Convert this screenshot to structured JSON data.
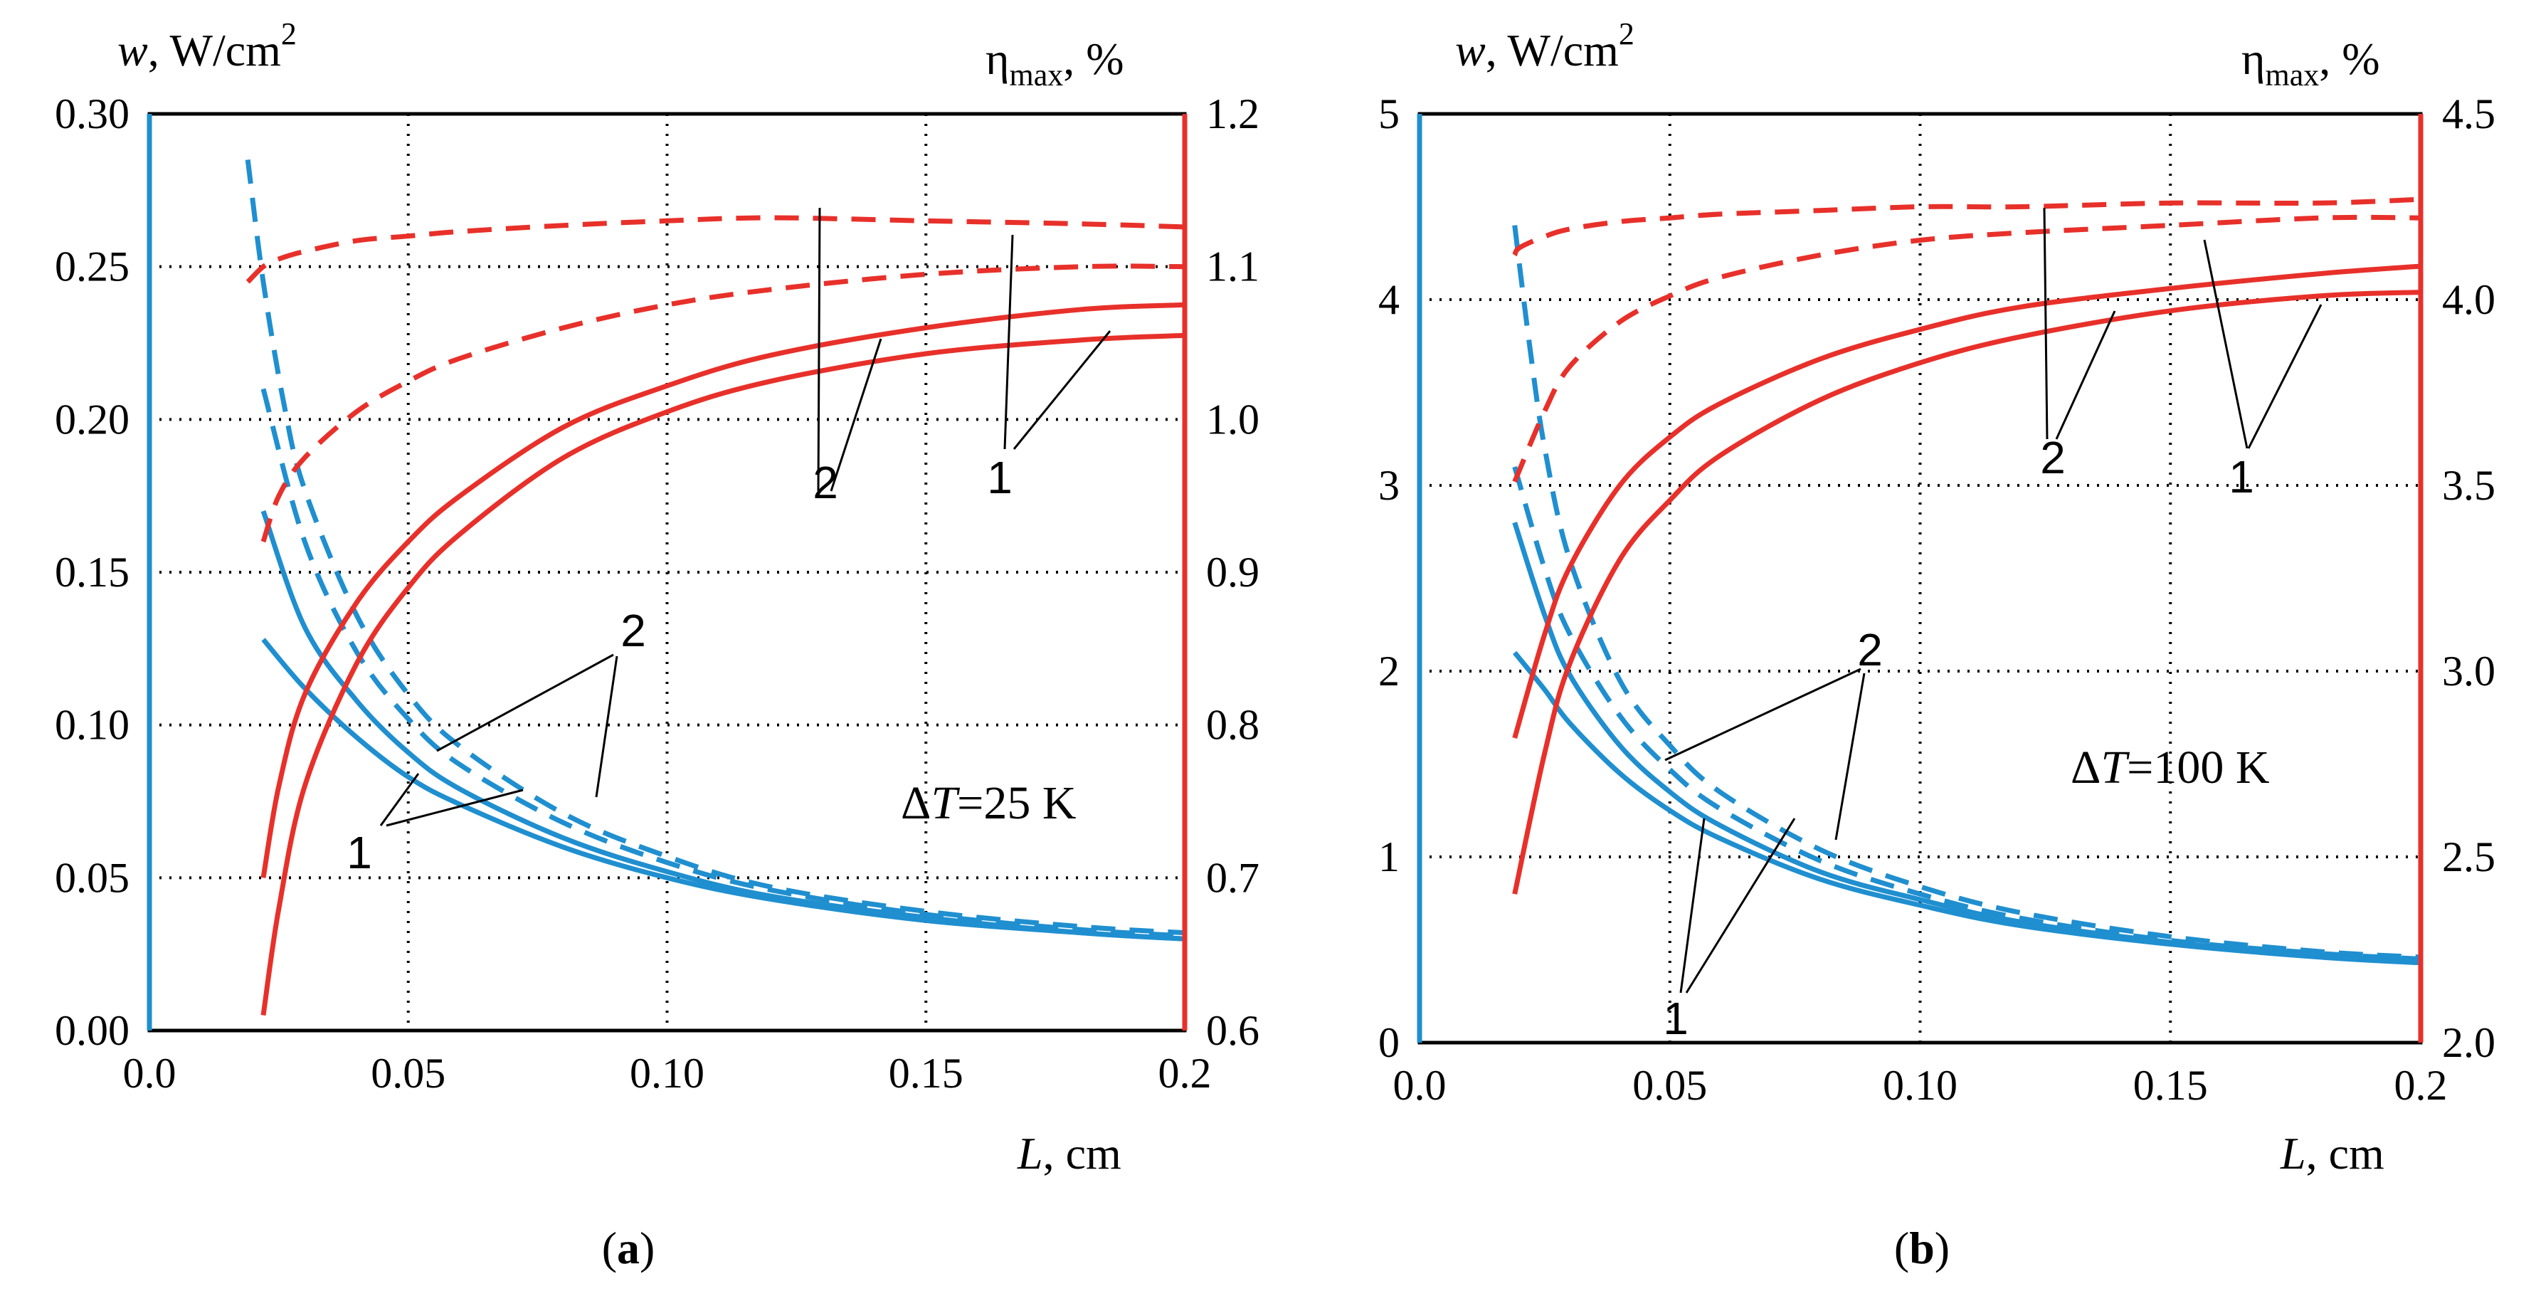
{
  "colors": {
    "w_axis": "#1f8fd0",
    "eta_axis": "#e8302a",
    "frame": "#000000",
    "grid": "#000000"
  },
  "chart_data": [
    {
      "type": "line",
      "panel_label": "(a)",
      "title": "",
      "xlabel": "L, cm",
      "ylabel_left": "w, W/cm²",
      "ylabel_right": "ηmax, %",
      "xlim": [
        0.0,
        0.2
      ],
      "ylim_left": [
        0.0,
        0.3
      ],
      "ylim_right": [
        0.6,
        1.2
      ],
      "grid": true,
      "xticks": [
        "0.0",
        "0.05",
        "0.10",
        "0.15",
        "0.2"
      ],
      "yticks_left": [
        "0.00",
        "0.05",
        "0.10",
        "0.15",
        "0.20",
        "0.25",
        "0.30"
      ],
      "yticks_right": [
        "0.6",
        "0.7",
        "0.8",
        "0.9",
        "1.0",
        "1.1",
        "1.2"
      ],
      "annotation": "ΔT=25 K",
      "series": [
        {
          "name": "w curve 1 (solid)",
          "axis": "left",
          "style": "solid",
          "x": [
            0.022,
            0.03,
            0.04,
            0.05,
            0.06,
            0.08,
            0.1,
            0.12,
            0.15,
            0.18,
            0.2
          ],
          "y": [
            0.128,
            0.112,
            0.096,
            0.083,
            0.074,
            0.06,
            0.05,
            0.043,
            0.036,
            0.032,
            0.03
          ]
        },
        {
          "name": "w curve 2 (solid)",
          "axis": "left",
          "style": "solid",
          "x": [
            0.022,
            0.03,
            0.04,
            0.05,
            0.06,
            0.08,
            0.1,
            0.12,
            0.15,
            0.18,
            0.2
          ],
          "y": [
            0.17,
            0.132,
            0.108,
            0.091,
            0.079,
            0.063,
            0.052,
            0.044,
            0.037,
            0.032,
            0.03
          ]
        },
        {
          "name": "w curve 1 (dashed)",
          "axis": "left",
          "style": "dashed",
          "x": [
            0.022,
            0.03,
            0.04,
            0.05,
            0.06,
            0.08,
            0.1,
            0.12,
            0.15,
            0.18,
            0.2
          ],
          "y": [
            0.21,
            0.16,
            0.124,
            0.102,
            0.087,
            0.068,
            0.055,
            0.046,
            0.038,
            0.033,
            0.031
          ]
        },
        {
          "name": "w curve 2 (dashed)",
          "axis": "left",
          "style": "dashed",
          "x": [
            0.019,
            0.022,
            0.026,
            0.03,
            0.04,
            0.05,
            0.06,
            0.08,
            0.1,
            0.12,
            0.15,
            0.18,
            0.2
          ],
          "y": [
            0.285,
            0.245,
            0.205,
            0.177,
            0.136,
            0.11,
            0.093,
            0.071,
            0.057,
            0.047,
            0.039,
            0.034,
            0.032
          ]
        },
        {
          "name": "η curve 1 (solid)",
          "axis": "right",
          "style": "solid",
          "x": [
            0.022,
            0.025,
            0.03,
            0.04,
            0.05,
            0.06,
            0.08,
            0.1,
            0.12,
            0.15,
            0.18,
            0.2
          ],
          "y": [
            0.61,
            0.68,
            0.76,
            0.84,
            0.89,
            0.925,
            0.975,
            1.005,
            1.025,
            1.043,
            1.052,
            1.055
          ]
        },
        {
          "name": "η curve 2 (solid)",
          "axis": "right",
          "style": "solid",
          "x": [
            0.022,
            0.025,
            0.03,
            0.04,
            0.05,
            0.06,
            0.08,
            0.1,
            0.12,
            0.15,
            0.18,
            0.2
          ],
          "y": [
            0.7,
            0.76,
            0.82,
            0.88,
            0.92,
            0.95,
            0.995,
            1.022,
            1.042,
            1.06,
            1.072,
            1.075
          ]
        },
        {
          "name": "η curve 1 (dashed)",
          "axis": "right",
          "style": "dashed",
          "x": [
            0.022,
            0.025,
            0.03,
            0.04,
            0.05,
            0.06,
            0.08,
            0.1,
            0.12,
            0.15,
            0.18,
            0.2
          ],
          "y": [
            0.92,
            0.95,
            0.975,
            1.005,
            1.025,
            1.04,
            1.06,
            1.075,
            1.085,
            1.095,
            1.1,
            1.1
          ]
        },
        {
          "name": "η curve 2 (dashed)",
          "axis": "right",
          "style": "dashed",
          "x": [
            0.019,
            0.022,
            0.025,
            0.03,
            0.04,
            0.05,
            0.06,
            0.08,
            0.1,
            0.12,
            0.15,
            0.18,
            0.2
          ],
          "y": [
            1.09,
            1.1,
            1.105,
            1.11,
            1.117,
            1.12,
            1.123,
            1.127,
            1.13,
            1.132,
            1.13,
            1.128,
            1.126
          ]
        }
      ],
      "curve_labels": [
        {
          "text": "2",
          "target": "η pair 2"
        },
        {
          "text": "1",
          "target": "η pair 1"
        },
        {
          "text": "2",
          "target": "w pair 2"
        },
        {
          "text": "1",
          "target": "w pair 1"
        }
      ]
    },
    {
      "type": "line",
      "panel_label": "(b)",
      "title": "",
      "xlabel": "L, cm",
      "ylabel_left": "w, W/cm²",
      "ylabel_right": "ηmax, %",
      "xlim": [
        0.0,
        0.2
      ],
      "ylim_left": [
        0,
        5
      ],
      "ylim_right": [
        2.0,
        4.5
      ],
      "grid": true,
      "xticks": [
        "0.0",
        "0.05",
        "0.10",
        "0.15",
        "0.2"
      ],
      "yticks_left": [
        "0",
        "1",
        "2",
        "3",
        "4",
        "5"
      ],
      "yticks_right": [
        "2.0",
        "2.5",
        "3.0",
        "3.5",
        "4.0",
        "4.5"
      ],
      "annotation": "ΔT=100 K",
      "series": [
        {
          "name": "w curve 1 (solid)",
          "axis": "left",
          "style": "solid",
          "x": [
            0.019,
            0.025,
            0.03,
            0.04,
            0.05,
            0.06,
            0.08,
            0.1,
            0.12,
            0.15,
            0.18,
            0.2
          ],
          "y": [
            2.1,
            1.9,
            1.72,
            1.45,
            1.25,
            1.1,
            0.88,
            0.74,
            0.63,
            0.53,
            0.46,
            0.43
          ]
        },
        {
          "name": "w curve 2 (solid)",
          "axis": "left",
          "style": "solid",
          "x": [
            0.019,
            0.025,
            0.03,
            0.04,
            0.05,
            0.06,
            0.08,
            0.1,
            0.12,
            0.15,
            0.18,
            0.2
          ],
          "y": [
            2.8,
            2.3,
            1.98,
            1.6,
            1.35,
            1.17,
            0.92,
            0.77,
            0.65,
            0.54,
            0.47,
            0.44
          ]
        },
        {
          "name": "w curve 1 (dashed)",
          "axis": "left",
          "style": "dashed",
          "x": [
            0.019,
            0.025,
            0.03,
            0.04,
            0.05,
            0.06,
            0.08,
            0.1,
            0.12,
            0.15,
            0.18,
            0.2
          ],
          "y": [
            3.1,
            2.55,
            2.2,
            1.76,
            1.47,
            1.26,
            0.98,
            0.8,
            0.67,
            0.55,
            0.48,
            0.45
          ]
        },
        {
          "name": "w curve 2 (dashed)",
          "axis": "left",
          "style": "dashed",
          "x": [
            0.019,
            0.022,
            0.025,
            0.03,
            0.04,
            0.05,
            0.06,
            0.08,
            0.1,
            0.12,
            0.15,
            0.18,
            0.2
          ],
          "y": [
            4.4,
            3.75,
            3.2,
            2.6,
            1.95,
            1.6,
            1.35,
            1.04,
            0.84,
            0.7,
            0.57,
            0.49,
            0.46
          ]
        },
        {
          "name": "η curve 1 (solid)",
          "axis": "right",
          "style": "solid",
          "x": [
            0.019,
            0.025,
            0.03,
            0.04,
            0.05,
            0.06,
            0.08,
            0.1,
            0.12,
            0.15,
            0.18,
            0.2
          ],
          "y": [
            2.4,
            2.78,
            3.02,
            3.3,
            3.46,
            3.58,
            3.73,
            3.83,
            3.9,
            3.97,
            4.01,
            4.02
          ]
        },
        {
          "name": "η curve 2 (solid)",
          "axis": "right",
          "style": "solid",
          "x": [
            0.019,
            0.025,
            0.03,
            0.04,
            0.05,
            0.06,
            0.08,
            0.1,
            0.12,
            0.15,
            0.18,
            0.2
          ],
          "y": [
            2.82,
            3.1,
            3.28,
            3.5,
            3.63,
            3.72,
            3.84,
            3.92,
            3.98,
            4.03,
            4.07,
            4.09
          ]
        },
        {
          "name": "η curve 1 (dashed)",
          "axis": "right",
          "style": "dashed",
          "x": [
            0.019,
            0.025,
            0.03,
            0.04,
            0.05,
            0.06,
            0.08,
            0.1,
            0.12,
            0.15,
            0.18,
            0.2
          ],
          "y": [
            3.51,
            3.7,
            3.82,
            3.94,
            4.01,
            4.06,
            4.12,
            4.16,
            4.18,
            4.2,
            4.22,
            4.22
          ]
        },
        {
          "name": "η curve 2 (dashed)",
          "axis": "right",
          "style": "dashed",
          "x": [
            0.019,
            0.02,
            0.025,
            0.03,
            0.04,
            0.05,
            0.06,
            0.08,
            0.1,
            0.12,
            0.15,
            0.18,
            0.2
          ],
          "y": [
            4.12,
            4.14,
            4.17,
            4.19,
            4.21,
            4.22,
            4.23,
            4.24,
            4.25,
            4.25,
            4.26,
            4.26,
            4.27
          ]
        }
      ],
      "curve_labels": [
        {
          "text": "2",
          "target": "η pair 2"
        },
        {
          "text": "1",
          "target": "η pair 1"
        },
        {
          "text": "2",
          "target": "w pair 2"
        },
        {
          "text": "1",
          "target": "w pair 1"
        }
      ]
    }
  ]
}
